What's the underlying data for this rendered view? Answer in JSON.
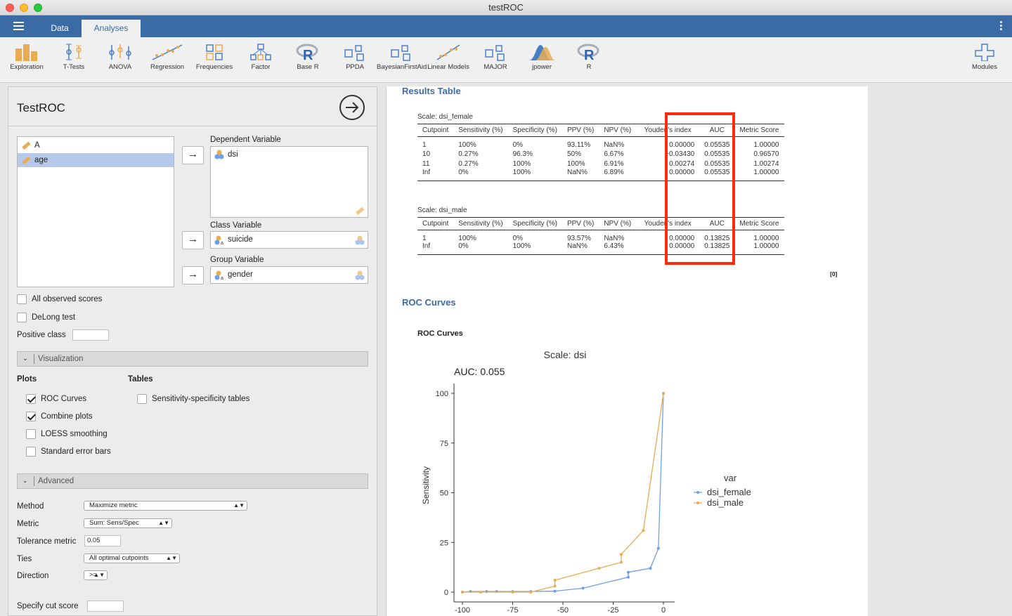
{
  "window": {
    "title": "testROC"
  },
  "menubar": {
    "tabs": [
      "Data",
      "Analyses"
    ],
    "active_tab": "Analyses"
  },
  "ribbon": {
    "items": [
      "Exploration",
      "T-Tests",
      "ANOVA",
      "Regression",
      "Frequencies",
      "Factor",
      "Base R",
      "PPDA",
      "BayesianFirstAid",
      "Linear Models",
      "MAJOR",
      "jpower",
      "R"
    ],
    "modules": "Modules"
  },
  "left": {
    "title": "TestROC",
    "variables": [
      "A",
      "age"
    ],
    "dependent_label": "Dependent Variable",
    "dependent_value": "dsi",
    "class_label": "Class Variable",
    "class_value": "suicide",
    "group_label": "Group Variable",
    "group_value": "gender",
    "all_observed": "All observed scores",
    "delong": "DeLong test",
    "positive_class": "Positive class",
    "visualization": "Visualization",
    "plots_header": "Plots",
    "tables_header": "Tables",
    "roc_curves": "ROC Curves",
    "combine_plots": "Combine plots",
    "loess": "LOESS smoothing",
    "std_err": "Standard error bars",
    "sens_spec_tables": "Sensitivity-specificity tables",
    "advanced": "Advanced",
    "method_label": "Method",
    "method_value": "Maximize metric",
    "metric_label": "Metric",
    "metric_value": "Sum: Sens/Spec",
    "tolerance_label": "Tolerance metric",
    "tolerance_value": "0.05",
    "ties_label": "Ties",
    "ties_value": "All optimal cutpoints",
    "direction_label": "Direction",
    "direction_value": ">=",
    "cut_score_label": "Specify cut score"
  },
  "results": {
    "heading": "Results Table",
    "headers": [
      "Cutpoint",
      "Sensitivity (%)",
      "Specificity (%)",
      "PPV (%)",
      "NPV (%)",
      "Youden's index",
      "AUC",
      "Metric Score"
    ],
    "table1_caption": "Scale: dsi_female",
    "table1_rows": [
      [
        "1",
        "100%",
        "0%",
        "93.11%",
        "NaN%",
        "0.00000",
        "0.05535",
        "1.00000"
      ],
      [
        "10",
        "0.27%",
        "96.3%",
        "50%",
        "6.67%",
        "−0.03430",
        "0.05535",
        "0.96570"
      ],
      [
        "11",
        "0.27%",
        "100%",
        "100%",
        "6.91%",
        "0.00274",
        "0.05535",
        "1.00274"
      ],
      [
        "Inf",
        "0%",
        "100%",
        "NaN%",
        "6.89%",
        "0.00000",
        "0.05535",
        "1.00000"
      ]
    ],
    "table2_caption": "Scale: dsi_male",
    "table2_rows": [
      [
        "1",
        "100%",
        "0%",
        "93.57%",
        "NaN%",
        "0.00000",
        "0.13825",
        "1.00000"
      ],
      [
        "Inf",
        "0%",
        "100%",
        "NaN%",
        "6.43%",
        "0.00000",
        "0.13825",
        "1.00000"
      ]
    ],
    "footnote": "[0]",
    "roc_heading": "ROC Curves",
    "roc_subheading": "ROC Curves",
    "highlight_color": "#ff2a0a"
  },
  "chart_data": {
    "type": "line",
    "title": "Scale: dsi",
    "subtitle": "AUC: 0.055",
    "ylabel": "Sensitivity",
    "xlabel": "",
    "xlim": [
      -100,
      0
    ],
    "ylim": [
      0,
      100
    ],
    "xticks": [
      -100,
      -75,
      -50,
      -25,
      0
    ],
    "yticks": [
      0,
      25,
      50,
      75,
      100
    ],
    "legend_title": "var",
    "legend_position": "right",
    "series": [
      {
        "name": "dsi_female",
        "color": "#6fa0e6",
        "x": [
          -100,
          -96,
          -88,
          -83,
          -75,
          -66,
          -54,
          -40,
          -17.5,
          -17.5,
          -6.5,
          -2.5,
          0
        ],
        "y": [
          0,
          0.3,
          0.3,
          0.3,
          0.3,
          0.3,
          0.5,
          2,
          7.5,
          10,
          12,
          22,
          100
        ]
      },
      {
        "name": "dsi_male",
        "color": "#e8ad52",
        "x": [
          -100,
          -91,
          -75,
          -66,
          -54,
          -54,
          -32,
          -21,
          -21,
          -10,
          0
        ],
        "y": [
          0,
          0,
          0,
          0,
          3,
          6,
          12,
          15,
          19,
          31,
          100
        ]
      }
    ]
  }
}
